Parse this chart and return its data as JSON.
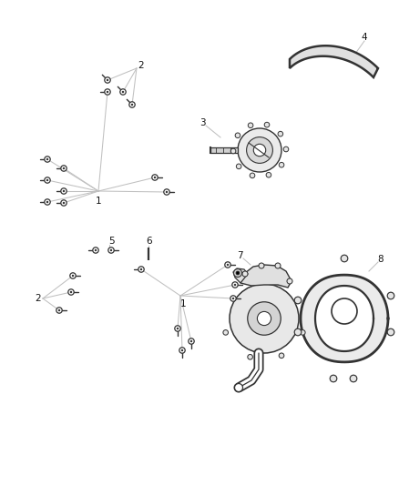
{
  "bg_color": "#ffffff",
  "fig_w": 4.38,
  "fig_h": 5.33,
  "lc": "#c0c0c0",
  "pc": "#333333",
  "label_fs": 7.5,
  "bolt_r": 3.2,
  "bolt_shaft": 8.0
}
